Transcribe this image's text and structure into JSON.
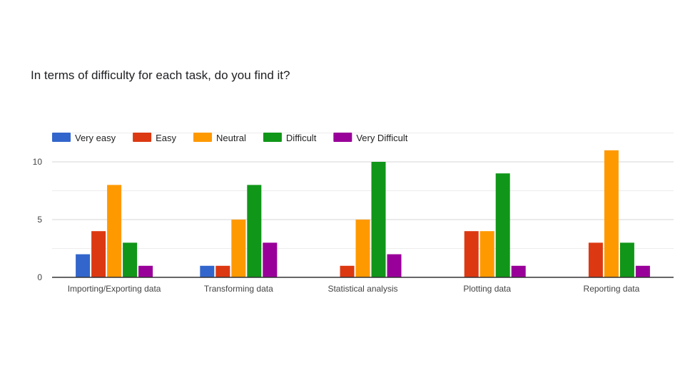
{
  "chart_data": {
    "type": "bar",
    "title": "In terms of difficulty for each task, do you find it?",
    "categories": [
      "Importing/Exporting data",
      "Transforming data",
      "Statistical analysis",
      "Plotting data",
      "Reporting data"
    ],
    "series": [
      {
        "name": "Very easy",
        "color": "#3366cc",
        "values": [
          2,
          1,
          0,
          0,
          0
        ]
      },
      {
        "name": "Easy",
        "color": "#dc3912",
        "values": [
          4,
          1,
          1,
          4,
          3
        ]
      },
      {
        "name": "Neutral",
        "color": "#ff9900",
        "values": [
          8,
          5,
          5,
          4,
          11
        ]
      },
      {
        "name": "Difficult",
        "color": "#109618",
        "values": [
          3,
          8,
          10,
          9,
          3
        ]
      },
      {
        "name": "Very Difficult",
        "color": "#990099",
        "values": [
          1,
          3,
          2,
          1,
          1
        ]
      }
    ],
    "yticks": [
      0,
      5,
      10
    ],
    "ylim": [
      0,
      12.5
    ],
    "xlabel": "",
    "ylabel": "",
    "legend_position": "top-left",
    "grid": true
  }
}
